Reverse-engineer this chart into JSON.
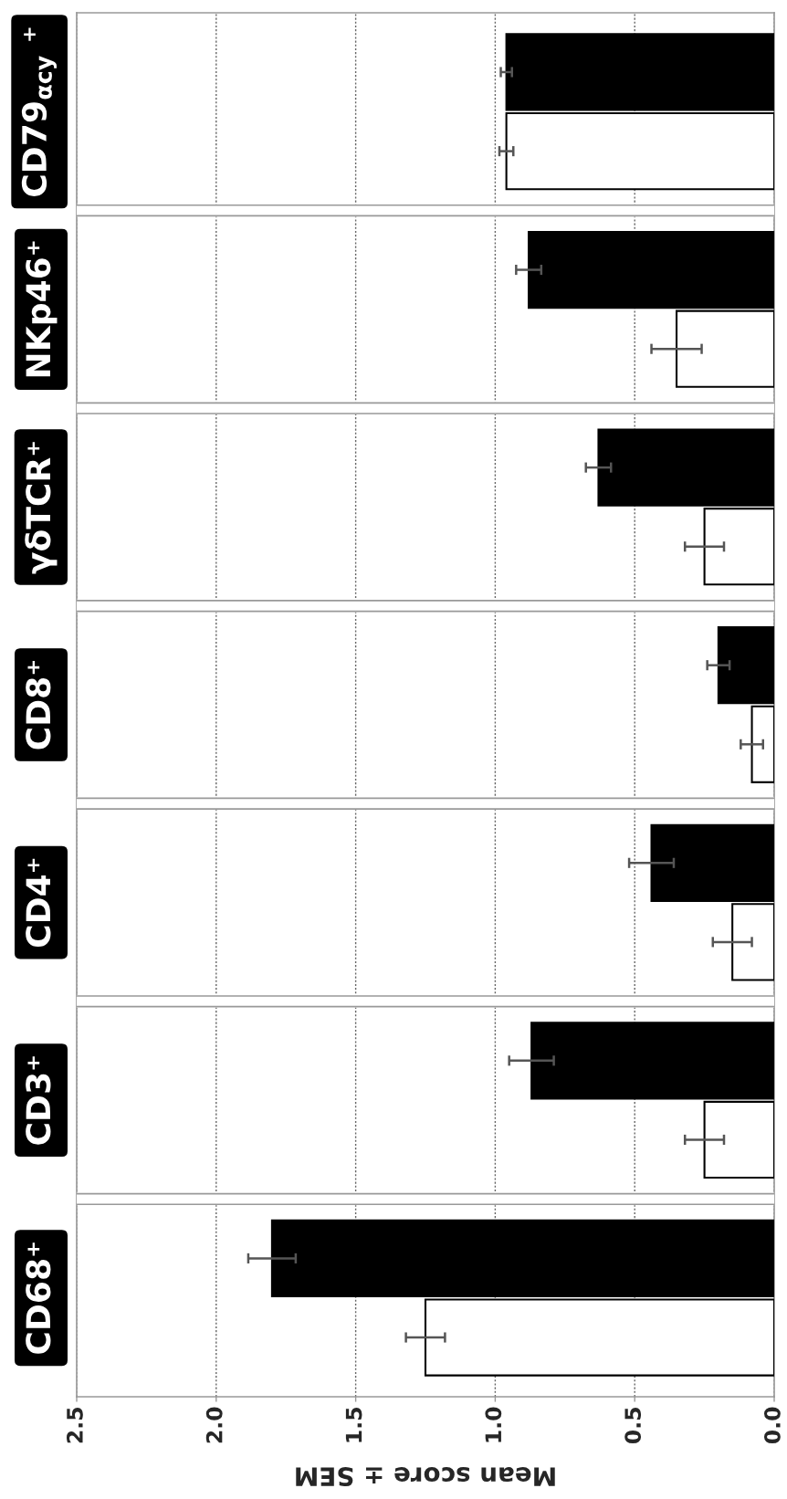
{
  "chart_data": {
    "type": "bar",
    "orientation": "horizontal",
    "xlabel": "Mean score ± SEM",
    "categories": [
      "CD79$_{αcy}$ ⁺",
      "NKp46⁺",
      "γδTCR⁺",
      "CD8⁺",
      "CD4⁺",
      "CD3⁺",
      "CD68⁺"
    ],
    "xlim": [
      2.5,
      0
    ],
    "xticks": [
      {
        "value": 0,
        "label": "0.0"
      },
      {
        "value": 0.5,
        "label": "0.5"
      },
      {
        "value": 1,
        "label": "1.0"
      },
      {
        "value": 1.5,
        "label": "1.5"
      },
      {
        "value": 2,
        "label": "2.0"
      },
      {
        "value": 2.5,
        "label": "2.5"
      }
    ],
    "grid": "x",
    "series": [
      {
        "color": "#000000",
        "values": [
          0.96,
          0.88,
          0.63,
          0.2,
          0.44,
          0.87,
          1.8
        ],
        "errors": [
          0.02,
          0.045,
          0.045,
          0.04,
          0.08,
          0.08,
          0.085
        ]
      },
      {
        "color": "#ffffff",
        "values": [
          0.96,
          0.35,
          0.25,
          0.08,
          0.15,
          0.25,
          1.25
        ],
        "errors": [
          0.025,
          0.09,
          0.07,
          0.04,
          0.07,
          0.07,
          0.07
        ]
      }
    ]
  }
}
